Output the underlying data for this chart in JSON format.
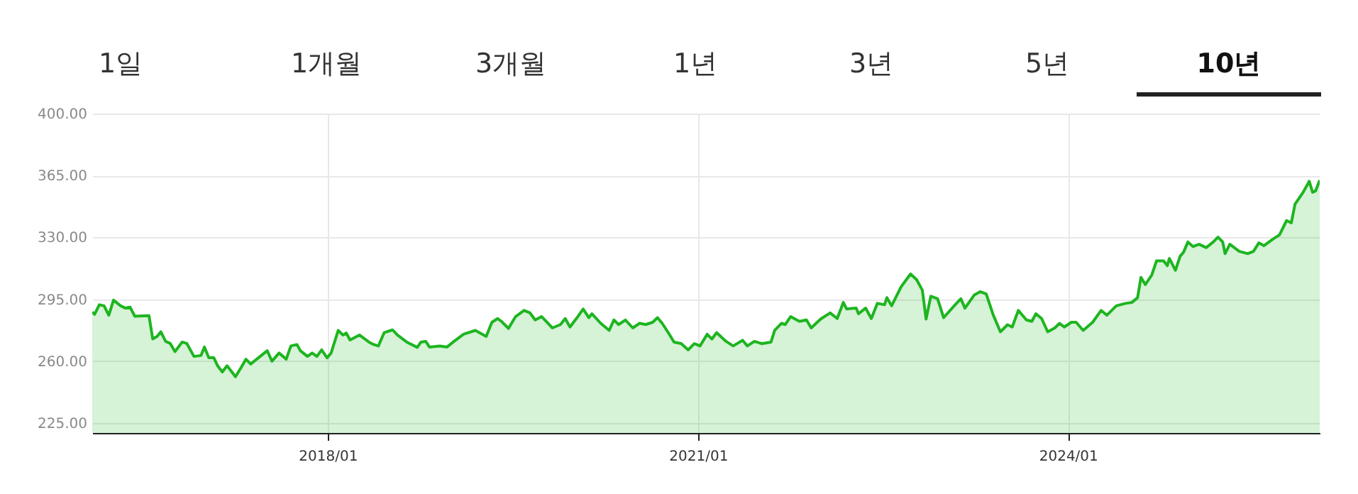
{
  "chart_data": {
    "type": "area",
    "annotations": [
      "1일",
      "1개월",
      "3개월",
      "1년",
      "3년",
      "5년",
      "10년"
    ],
    "x": [
      "2016-02-04",
      "2016-02-11",
      "2016-02-25",
      "2016-03-10",
      "2016-03-24",
      "2016-04-07",
      "2016-04-28",
      "2016-05-12",
      "2016-05-26",
      "2016-06-09",
      "2016-07-21",
      "2016-08-01",
      "2016-08-14",
      "2016-08-25",
      "2016-09-08",
      "2016-09-22",
      "2016-10-06",
      "2016-10-27",
      "2016-11-10",
      "2016-12-01",
      "2016-12-22",
      "2017-01-01",
      "2017-01-14",
      "2017-01-29",
      "2017-02-09",
      "2017-02-23",
      "2017-03-09",
      "2017-04-03",
      "2017-04-20",
      "2017-05-04",
      "2017-05-18",
      "2017-06-15",
      "2017-07-06",
      "2017-07-20",
      "2017-08-10",
      "2017-08-31",
      "2017-09-14",
      "2017-10-02",
      "2017-10-12",
      "2017-11-02",
      "2017-11-16",
      "2017-11-30",
      "2017-12-14",
      "2017-12-30",
      "2018-01-11",
      "2018-02-01",
      "2018-02-15",
      "2018-02-25",
      "2018-03-08",
      "2018-04-05",
      "2018-05-03",
      "2018-05-17",
      "2018-05-31",
      "2018-06-17",
      "2018-07-12",
      "2018-07-26",
      "2018-08-23",
      "2018-09-23",
      "2018-10-04",
      "2018-10-18",
      "2018-10-29",
      "2018-11-29",
      "2018-12-20",
      "2019-01-10",
      "2019-02-07",
      "2019-03-14",
      "2019-04-15",
      "2019-05-02",
      "2019-05-19",
      "2019-05-30",
      "2019-06-20",
      "2019-07-11",
      "2019-08-05",
      "2019-08-22",
      "2019-09-07",
      "2019-09-26",
      "2019-10-28",
      "2019-11-21",
      "2019-12-05",
      "2019-12-19",
      "2020-01-09",
      "2020-01-27",
      "2020-02-13",
      "2020-02-22",
      "2020-03-19",
      "2020-04-13",
      "2020-04-27",
      "2020-05-11",
      "2020-05-31",
      "2020-06-22",
      "2020-07-12",
      "2020-07-30",
      "2020-08-20",
      "2020-09-03",
      "2020-09-17",
      "2020-10-08",
      "2020-10-22",
      "2020-11-12",
      "2020-11-23",
      "2020-12-03",
      "2020-12-21",
      "2021-01-07",
      "2021-01-28",
      "2021-02-11",
      "2021-02-25",
      "2021-03-25",
      "2021-04-15",
      "2021-05-13",
      "2021-05-27",
      "2021-06-17",
      "2021-07-08",
      "2021-08-05",
      "2021-08-16",
      "2021-09-05",
      "2021-09-16",
      "2021-10-02",
      "2021-10-28",
      "2021-11-18",
      "2021-12-02",
      "2021-12-30",
      "2022-01-27",
      "2022-02-17",
      "2022-03-07",
      "2022-03-17",
      "2022-04-14",
      "2022-04-21",
      "2022-05-12",
      "2022-05-29",
      "2022-06-16",
      "2022-07-07",
      "2022-07-14",
      "2022-07-28",
      "2022-08-25",
      "2022-09-22",
      "2022-10-10",
      "2022-10-27",
      "2022-11-07",
      "2022-11-21",
      "2022-12-11",
      "2022-12-29",
      "2023-02-02",
      "2023-02-18",
      "2023-03-02",
      "2023-03-30",
      "2023-04-16",
      "2023-05-04",
      "2023-05-25",
      "2023-06-15",
      "2023-07-06",
      "2023-07-20",
      "2023-08-07",
      "2023-08-31",
      "2023-09-16",
      "2023-09-28",
      "2023-10-15",
      "2023-11-02",
      "2023-11-23",
      "2023-12-07",
      "2023-12-21",
      "2024-01-11",
      "2024-01-25",
      "2024-02-15",
      "2024-03-14",
      "2024-04-08",
      "2024-04-25",
      "2024-05-23",
      "2024-06-20",
      "2024-07-08",
      "2024-07-25",
      "2024-08-04",
      "2024-08-17",
      "2024-09-05",
      "2024-09-19",
      "2024-10-10",
      "2024-10-21",
      "2024-10-27",
      "2024-11-14",
      "2024-11-28",
      "2024-12-08",
      "2024-12-21",
      "2025-01-05",
      "2025-01-23",
      "2025-02-13",
      "2025-03-06",
      "2025-03-20",
      "2025-04-03",
      "2025-04-10",
      "2025-04-24",
      "2025-05-22",
      "2025-06-16",
      "2025-07-03",
      "2025-07-19",
      "2025-08-03",
      "2025-08-28",
      "2025-09-18",
      "2025-10-09",
      "2025-10-23",
      "2025-11-03",
      "2025-11-27",
      "2025-12-15",
      "2025-12-25",
      "2026-01-03",
      "2026-01-15"
    ],
    "series": [
      {
        "color": "#1db520",
        "values": [
          287.8,
          286.5,
          291.9,
          291.3,
          286,
          294.5,
          291.3,
          290,
          290.5,
          285.4,
          285.7,
          272.6,
          274,
          276.6,
          271.2,
          270,
          265.4,
          270.8,
          270,
          262.7,
          263.2,
          268,
          261.9,
          261.9,
          257.4,
          253.9,
          257.4,
          251.2,
          256.5,
          261.1,
          258.4,
          262.7,
          265.9,
          260,
          264.6,
          261.1,
          268.6,
          269.4,
          265.9,
          262.7,
          264.6,
          262.7,
          266.4,
          261.9,
          264.6,
          277.4,
          274.8,
          275.9,
          272,
          274.8,
          270.8,
          269.4,
          268.6,
          276.1,
          277.7,
          274.8,
          270.8,
          267.8,
          270.8,
          271.2,
          268,
          268.6,
          268,
          271.2,
          275.2,
          277.4,
          274,
          282,
          284.1,
          282.5,
          278.5,
          285.2,
          288.7,
          287.4,
          283.3,
          285.2,
          278.8,
          280.7,
          284.1,
          279.3,
          284.6,
          289.5,
          284.6,
          286.8,
          281.4,
          277.4,
          283.3,
          280.7,
          283.3,
          278.8,
          281.4,
          280.7,
          282,
          284.6,
          281.4,
          275.2,
          270.8,
          270,
          268.1,
          266.4,
          269.9,
          268.6,
          275.2,
          272.5,
          276.1,
          271.2,
          268.6,
          271.8,
          268.6,
          271.2,
          269.9,
          270.8,
          277.4,
          281.4,
          280.7,
          285.2,
          282.5,
          283.3,
          278.8,
          283.8,
          287.3,
          284.1,
          293.2,
          289.5,
          290,
          286.8,
          290,
          284.1,
          292.7,
          291.9,
          295.9,
          291.3,
          302,
          309.3,
          306.1,
          300.1,
          283.8,
          296.7,
          295.3,
          284.6,
          292.1,
          295.3,
          290,
          297.5,
          299.3,
          298,
          286,
          276.6,
          280.6,
          279.3,
          288.7,
          283.3,
          282.5,
          286.8,
          284.1,
          276.6,
          278.8,
          281.4,
          279.3,
          282,
          282,
          277.4,
          282,
          288.7,
          286,
          291.3,
          292.7,
          293.2,
          295.9,
          307.4,
          303.3,
          308.7,
          316.7,
          316.7,
          314,
          318.1,
          311.4,
          319.4,
          321.6,
          327.4,
          324.8,
          326.1,
          324.2,
          327.4,
          330.1,
          327.4,
          320.8,
          326.1,
          322.1,
          320.8,
          322.1,
          326.9,
          325.3,
          328.8,
          331.4,
          339.5,
          338.2,
          348.8,
          355.5,
          361.7,
          355.5,
          356.3,
          362.3
        ]
      }
    ],
    "xlim": [
      "2016-02-04",
      "2026-01-15"
    ],
    "xticks": [
      {
        "value": "2018-01-01",
        "label": "2018/01"
      },
      {
        "value": "2021-01-01",
        "label": "2021/01"
      },
      {
        "value": "2024-01-01",
        "label": "2024/01"
      }
    ],
    "ylim": [
      219.4,
      400
    ],
    "yticks": [
      {
        "value": 225,
        "label": "225.00"
      },
      {
        "value": 260,
        "label": "260.00"
      },
      {
        "value": 295,
        "label": "295.00"
      },
      {
        "value": 330,
        "label": "330.00"
      },
      {
        "value": 365,
        "label": "365.00"
      },
      {
        "value": 400,
        "label": "400.00"
      }
    ],
    "grid": true
  }
}
